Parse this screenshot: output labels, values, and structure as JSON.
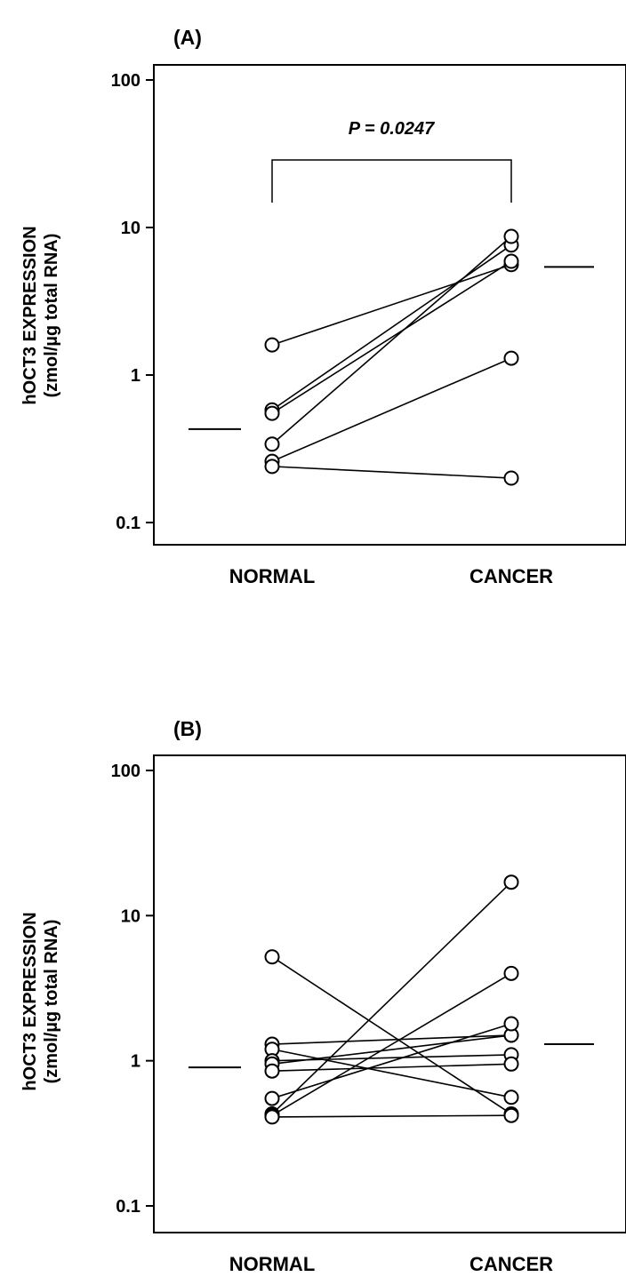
{
  "chart_data": [
    {
      "panel_label": "(A)",
      "type": "scatter",
      "scale": "log",
      "ylabel_line1": "hOCT3 EXPRESSION",
      "ylabel_line2": "(zmol/µg total RNA)",
      "ylim": [
        0.1,
        100
      ],
      "yticks": [
        {
          "value": 0.1,
          "label": "0.1"
        },
        {
          "value": 1,
          "label": "1"
        },
        {
          "value": 10,
          "label": "10"
        },
        {
          "value": 100,
          "label": "100"
        }
      ],
      "categories": [
        "NORMAL",
        "CANCER"
      ],
      "pairs": [
        [
          1.6,
          5.6
        ],
        [
          0.58,
          7.6
        ],
        [
          0.55,
          5.9
        ],
        [
          0.34,
          8.7
        ],
        [
          0.26,
          1.3
        ],
        [
          0.24,
          0.2
        ]
      ],
      "means": [
        0.43,
        5.4
      ],
      "p_value": "P = 0.0247",
      "grid": false
    },
    {
      "panel_label": "(B)",
      "type": "scatter",
      "scale": "log",
      "ylabel_line1": "hOCT3 EXPRESSION",
      "ylabel_line2": "(zmol/µg total RNA)",
      "ylim": [
        0.1,
        100
      ],
      "yticks": [
        {
          "value": 0.1,
          "label": "0.1"
        },
        {
          "value": 1,
          "label": "1"
        },
        {
          "value": 10,
          "label": "10"
        },
        {
          "value": 100,
          "label": "100"
        }
      ],
      "categories": [
        "NORMAL",
        "CANCER"
      ],
      "pairs": [
        [
          5.2,
          0.43
        ],
        [
          1.3,
          1.5
        ],
        [
          1.2,
          0.56
        ],
        [
          1.0,
          1.1
        ],
        [
          0.95,
          1.5
        ],
        [
          0.85,
          0.95
        ],
        [
          0.55,
          1.8
        ],
        [
          0.43,
          17
        ],
        [
          0.42,
          4.0
        ],
        [
          0.41,
          0.42
        ]
      ],
      "means": [
        0.9,
        1.3
      ],
      "grid": false
    }
  ]
}
